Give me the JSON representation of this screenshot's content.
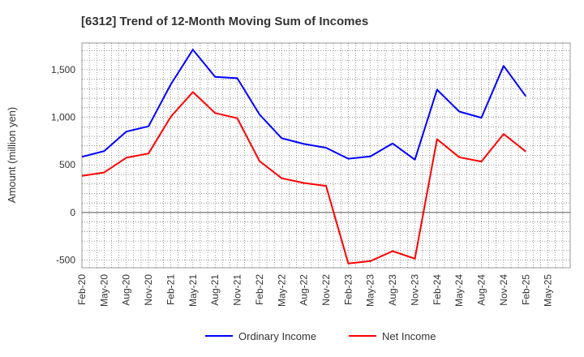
{
  "chart_data": {
    "type": "line",
    "title": "[6312]  Trend of 12-Month Moving Sum of Incomes",
    "xlabel": "",
    "ylabel": "Amount (million yen)",
    "ylim": [
      -580,
      1780
    ],
    "yticks": [
      -500,
      0,
      500,
      1000,
      1500
    ],
    "ytick_labels": [
      "-500",
      "0",
      "500",
      "1,000",
      "1,500"
    ],
    "categories": [
      "Feb-20",
      "May-20",
      "Aug-20",
      "Nov-20",
      "Feb-21",
      "May-21",
      "Aug-21",
      "Nov-21",
      "Feb-22",
      "May-22",
      "Aug-22",
      "Nov-22",
      "Feb-23",
      "May-23",
      "Aug-23",
      "Nov-23",
      "Feb-24",
      "May-24",
      "Aug-24",
      "Nov-24",
      "Feb-25",
      "May-25"
    ],
    "series": [
      {
        "name": "Ordinary Income",
        "color": "#0000ff",
        "values": [
          585,
          645,
          850,
          905,
          1345,
          1710,
          1425,
          1410,
          1030,
          780,
          720,
          680,
          565,
          590,
          725,
          555,
          1290,
          1060,
          995,
          1540,
          1220,
          null
        ]
      },
      {
        "name": "Net Income",
        "color": "#ff0000",
        "values": [
          385,
          420,
          575,
          620,
          1005,
          1265,
          1045,
          990,
          540,
          360,
          310,
          280,
          -535,
          -510,
          -405,
          -485,
          770,
          580,
          535,
          825,
          640,
          null
        ]
      }
    ],
    "grid": true,
    "legend": "bottom-center"
  }
}
